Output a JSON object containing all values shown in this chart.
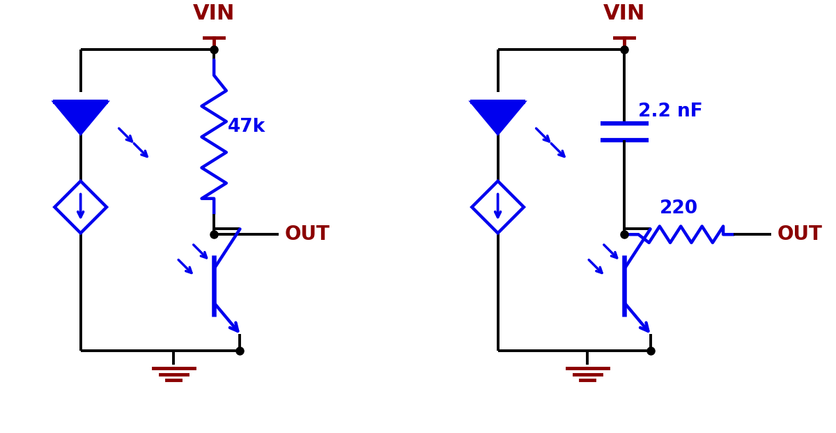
{
  "blue": "#0000EE",
  "dark_red": "#8B0000",
  "black": "#000000",
  "bg": "#FFFFFF",
  "lw_wire": 2.8,
  "lw_comp": 3.2,
  "lw_thick": 4.5,
  "circuit1": {
    "label_47k": "47k",
    "label_out": "OUT",
    "label_vin": "VIN"
  },
  "circuit2": {
    "label_cap": "2.2 nF",
    "label_res": "220",
    "label_out": "OUT",
    "label_vin": "VIN"
  }
}
